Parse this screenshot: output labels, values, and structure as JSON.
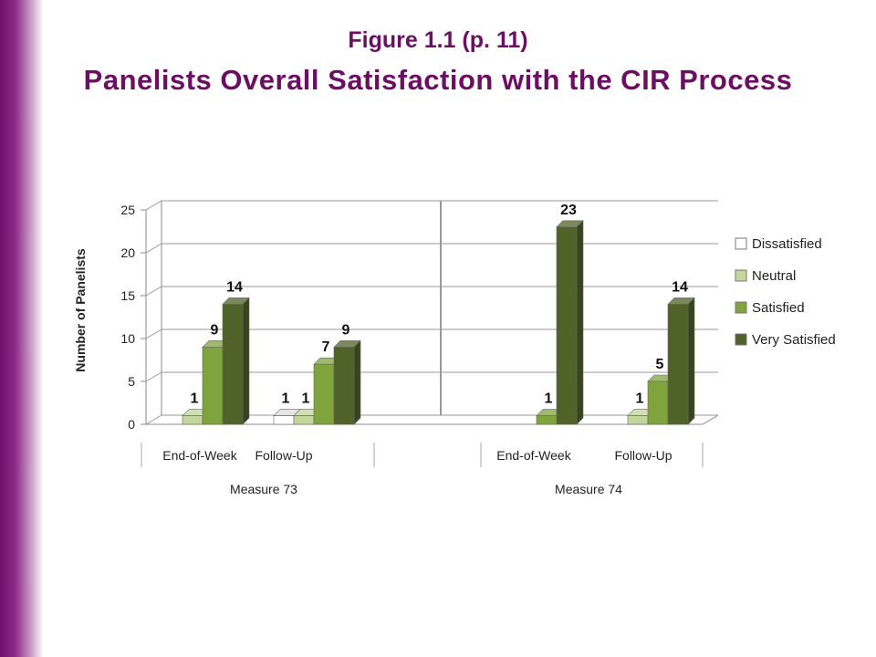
{
  "slide": {
    "title_line1": "Figure 1.1 (p. 11)",
    "title_line2": "Panelists Overall Satisfaction with the CIR Process"
  },
  "chart_data": {
    "type": "bar",
    "title": "",
    "ylabel": "Number of Panelists",
    "xlabel": "",
    "ylim": [
      0,
      25
    ],
    "yticks": [
      0,
      5,
      10,
      15,
      20,
      25
    ],
    "grid": true,
    "legend_position": "right",
    "groups": [
      {
        "name": "Measure 73",
        "categories": [
          "End-of-Week",
          "Follow-Up"
        ]
      },
      {
        "name": "Measure 74",
        "categories": [
          "End-of-Week",
          "Follow-Up"
        ]
      }
    ],
    "categories": [
      "End-of-Week",
      "Follow-Up",
      "End-of-Week",
      "Follow-Up"
    ],
    "series": [
      {
        "name": "Dissatisfied",
        "color": "#ffffff",
        "values": [
          null,
          1,
          null,
          null
        ]
      },
      {
        "name": "Neutral",
        "color": "#c3d69b",
        "values": [
          1,
          1,
          null,
          1
        ]
      },
      {
        "name": "Satisfied",
        "color": "#7fa33d",
        "values": [
          9,
          7,
          1,
          5
        ]
      },
      {
        "name": "Very Satisfied",
        "color": "#4f6228",
        "values": [
          14,
          9,
          23,
          14
        ]
      }
    ]
  }
}
